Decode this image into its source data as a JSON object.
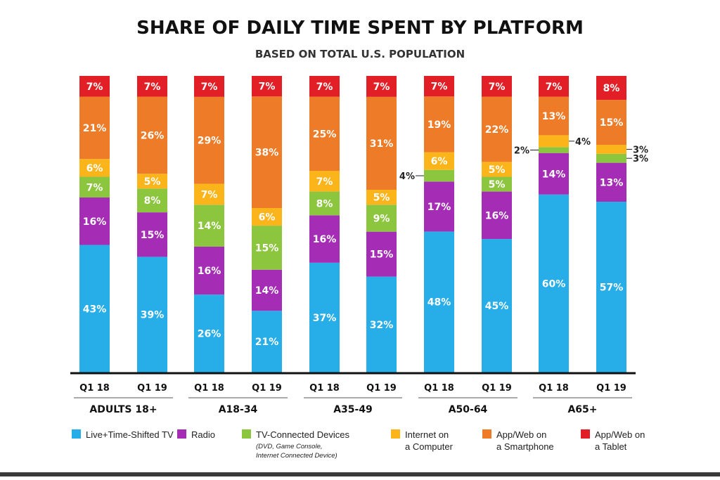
{
  "chart_data": {
    "type": "bar",
    "stacked": true,
    "title": "SHARE OF DAILY TIME SPENT BY PLATFORM",
    "subtitle": "BASED ON TOTAL U.S. POPULATION",
    "ylim": [
      0,
      100
    ],
    "categories": [
      "Q1 18",
      "Q1 19",
      "Q1 18",
      "Q1 19",
      "Q1 18",
      "Q1 19",
      "Q1 18",
      "Q1 19",
      "Q1 18",
      "Q1 19"
    ],
    "groups": [
      {
        "label": "ADULTS 18+",
        "categories": [
          0,
          1
        ]
      },
      {
        "label": "A18-34",
        "categories": [
          2,
          3
        ]
      },
      {
        "label": "A35-49",
        "categories": [
          4,
          5
        ]
      },
      {
        "label": "A50-64",
        "categories": [
          6,
          7
        ]
      },
      {
        "label": "A65+",
        "categories": [
          8,
          9
        ]
      }
    ],
    "series": [
      {
        "name": "Live+Time-Shifted TV",
        "color": "#27AEE8",
        "values": [
          43,
          39,
          26,
          21,
          37,
          32,
          48,
          45,
          60,
          57
        ]
      },
      {
        "name": "Radio",
        "color": "#A52DB5",
        "values": [
          16,
          15,
          16,
          14,
          16,
          15,
          17,
          16,
          14,
          13
        ]
      },
      {
        "name": "TV-Connected Devices",
        "note": "(DVD, Game Console, Internet Connected Device)",
        "color": "#8CC63F",
        "values": [
          7,
          8,
          14,
          15,
          8,
          9,
          4,
          5,
          2,
          3
        ]
      },
      {
        "name": "Internet on a Computer",
        "color": "#FBB41A",
        "values": [
          6,
          5,
          7,
          6,
          7,
          5,
          6,
          5,
          4,
          3
        ]
      },
      {
        "name": "App/Web on a Smartphone",
        "color": "#EE7B27",
        "values": [
          21,
          26,
          29,
          38,
          25,
          31,
          19,
          22,
          13,
          15
        ]
      },
      {
        "name": "App/Web on a Tablet",
        "color": "#E21F26",
        "values": [
          7,
          7,
          7,
          7,
          7,
          7,
          7,
          7,
          7,
          8
        ]
      }
    ],
    "legend_position": "bottom",
    "grid": false
  },
  "legend": [
    {
      "line1": "Live+Time-Shifted TV",
      "line2": ""
    },
    {
      "line1": "Radio",
      "line2": ""
    },
    {
      "line1": "TV-Connected Devices",
      "line2": ""
    },
    {
      "line1": "Internet on",
      "line2": "a Computer"
    },
    {
      "line1": "App/Web on",
      "line2": "a Smartphone"
    },
    {
      "line1": "App/Web on",
      "line2": "a Tablet"
    }
  ],
  "legend_note": [
    "(DVD, Game Console,",
    "Internet Connected Device)"
  ]
}
